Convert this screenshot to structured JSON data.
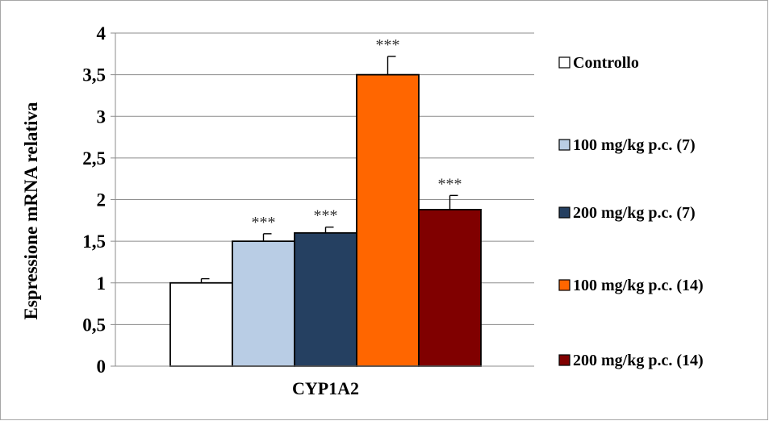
{
  "chart_data": {
    "type": "bar",
    "title": "",
    "xlabel": "",
    "ylabel": "Espressione mRNA relativa",
    "categories": [
      "CYP1A2"
    ],
    "ylim": [
      0,
      4
    ],
    "yticks": [
      0,
      0.5,
      1,
      1.5,
      2,
      2.5,
      3,
      3.5,
      4
    ],
    "ytick_labels": [
      "0",
      "0,5",
      "1",
      "1,5",
      "2",
      "2,5",
      "3",
      "3,5",
      "4"
    ],
    "grid": true,
    "legend_position": "right",
    "series": [
      {
        "name": "Controllo",
        "values": [
          1.0
        ],
        "error": [
          0.05
        ],
        "significance": "",
        "color": "#ffffff"
      },
      {
        "name": "100 mg/kg p.c. (7)",
        "values": [
          1.5
        ],
        "error": [
          0.09
        ],
        "significance": "***",
        "color": "#b9cde5"
      },
      {
        "name": "200 mg/kg p.c. (7)",
        "values": [
          1.6
        ],
        "error": [
          0.07
        ],
        "significance": "***",
        "color": "#254061"
      },
      {
        "name": "100 mg/kg p.c. (14)",
        "values": [
          3.5
        ],
        "error": [
          0.22
        ],
        "significance": "***",
        "color": "#ff6600"
      },
      {
        "name": "200 mg/kg p.c. (14)",
        "values": [
          1.88
        ],
        "error": [
          0.17
        ],
        "significance": "***",
        "color": "#800000"
      }
    ]
  }
}
